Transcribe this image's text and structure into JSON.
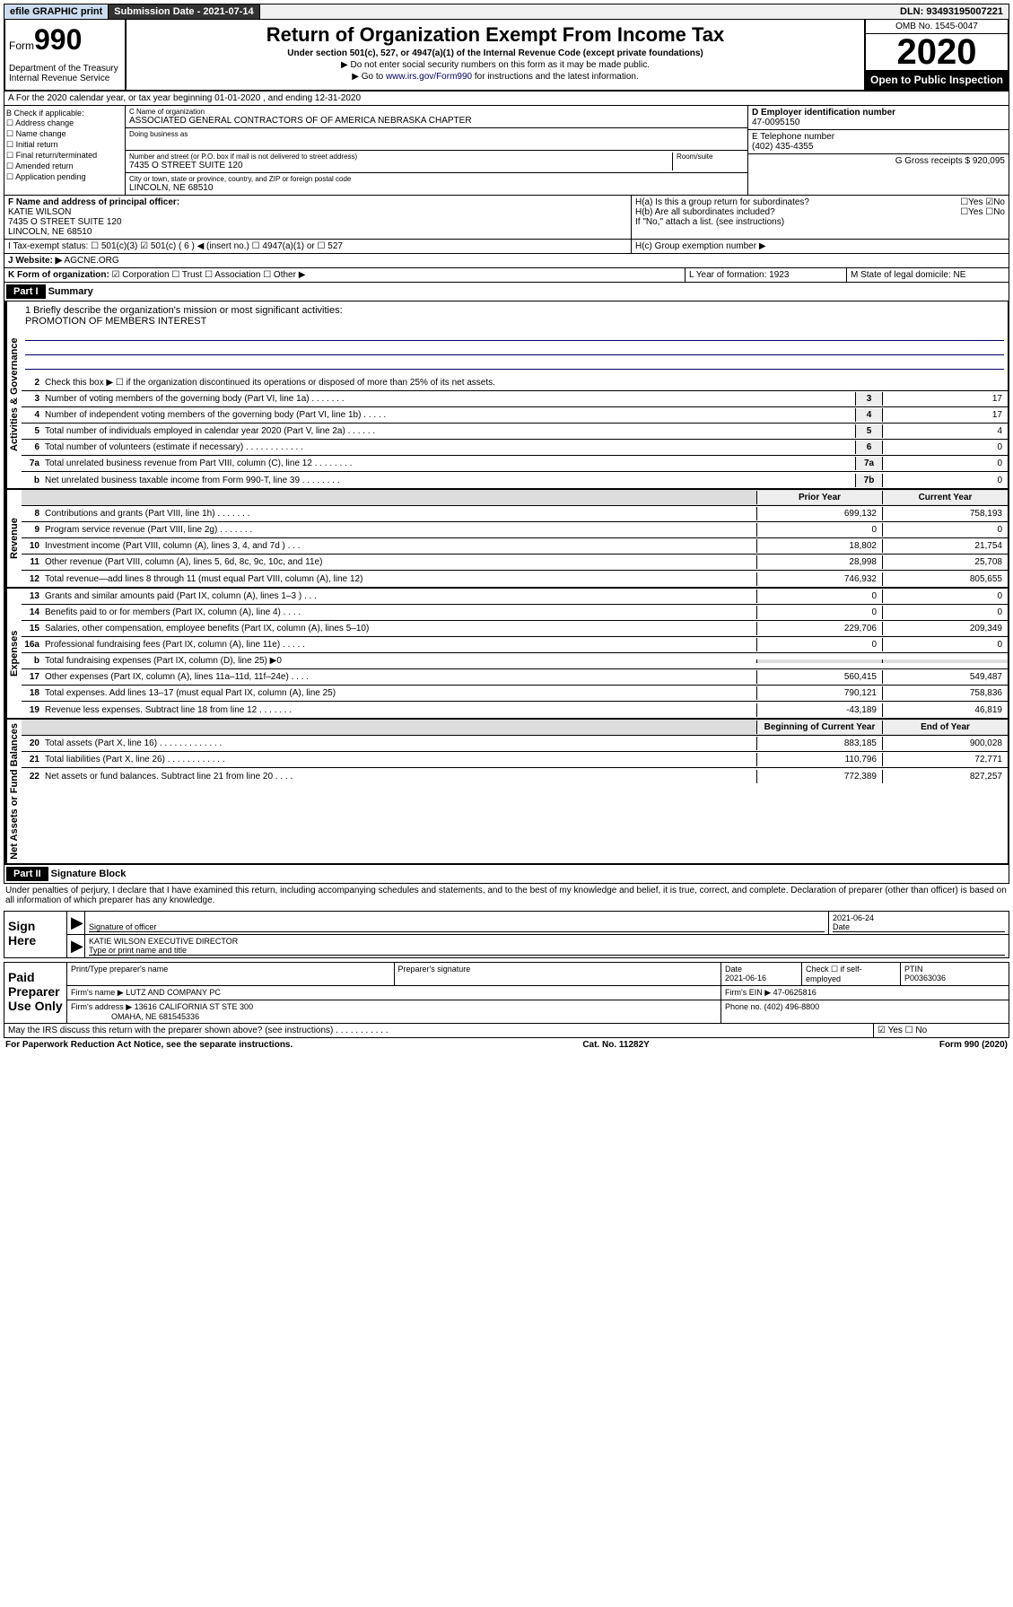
{
  "topbar": {
    "efile": "efile GRAPHIC print",
    "submission_label": "Submission Date - 2021-07-14",
    "dln": "DLN: 93493195007221"
  },
  "header": {
    "form_prefix": "Form",
    "form_number": "990",
    "dept": "Department of the Treasury Internal Revenue Service",
    "title": "Return of Organization Exempt From Income Tax",
    "subtitle": "Under section 501(c), 527, or 4947(a)(1) of the Internal Revenue Code (except private foundations)",
    "note1": "▶ Do not enter social security numbers on this form as it may be made public.",
    "note2_pre": "▶ Go to ",
    "note2_link": "www.irs.gov/Form990",
    "note2_post": " for instructions and the latest information.",
    "omb": "OMB No. 1545-0047",
    "year": "2020",
    "open_public": "Open to Public Inspection"
  },
  "lineA": "A For the 2020 calendar year, or tax year beginning 01-01-2020    , and ending 12-31-2020",
  "boxB": {
    "label": "B Check if applicable:",
    "opts": [
      "Address change",
      "Name change",
      "Initial return",
      "Final return/terminated",
      "Amended return",
      "Application pending"
    ]
  },
  "boxC": {
    "name_label": "C Name of organization",
    "name": "ASSOCIATED GENERAL CONTRACTORS OF OF AMERICA NEBRASKA CHAPTER",
    "dba_label": "Doing business as",
    "addr_label": "Number and street (or P.O. box if mail is not delivered to street address)",
    "room_label": "Room/suite",
    "addr": "7435 O STREET SUITE 120",
    "city_label": "City or town, state or province, country, and ZIP or foreign postal code",
    "city": "LINCOLN, NE  68510"
  },
  "boxD": {
    "label": "D Employer identification number",
    "val": "47-0095150"
  },
  "boxE": {
    "label": "E Telephone number",
    "val": "(402) 435-4355"
  },
  "boxG": {
    "label": "G Gross receipts $ 920,095"
  },
  "boxF": {
    "label": "F  Name and address of principal officer:",
    "name": "KATIE WILSON",
    "addr1": "7435 O STREET SUITE 120",
    "addr2": "LINCOLN, NE  68510"
  },
  "boxH": {
    "a": "H(a)  Is this a group return for subordinates?",
    "b": "H(b)  Are all subordinates included?",
    "note": "If \"No,\" attach a list. (see instructions)",
    "c": "H(c)  Group exemption number ▶"
  },
  "boxI": {
    "label": "I Tax-exempt status:",
    "val": "501(c) ( 6 ) ◀ (insert no.)"
  },
  "boxJ": {
    "label": "J Website: ▶",
    "val": "AGCNE.ORG"
  },
  "boxK": {
    "label": "K Form of organization:"
  },
  "boxL": {
    "label": "L Year of formation: 1923"
  },
  "boxM": {
    "label": "M State of legal domicile: NE"
  },
  "part1": {
    "header": "Part I",
    "title": "Summary",
    "mission_label": "1  Briefly describe the organization's mission or most significant activities:",
    "mission": "PROMOTION OF MEMBERS INTEREST",
    "line2": "Check this box ▶ ☐  if the organization discontinued its operations or disposed of more than 25% of its net assets.",
    "gov_label": "Activities & Governance",
    "rev_label": "Revenue",
    "exp_label": "Expenses",
    "net_label": "Net Assets or Fund Balances",
    "rows_gov": [
      {
        "n": "3",
        "d": "Number of voting members of the governing body (Part VI, line 1a)  .   .   .   .   .   .   .",
        "b": "3",
        "v": "17"
      },
      {
        "n": "4",
        "d": "Number of independent voting members of the governing body (Part VI, line 1b)  .   .   .   .   .",
        "b": "4",
        "v": "17"
      },
      {
        "n": "5",
        "d": "Total number of individuals employed in calendar year 2020 (Part V, line 2a)  .   .   .   .   .   .",
        "b": "5",
        "v": "4"
      },
      {
        "n": "6",
        "d": "Total number of volunteers (estimate if necessary)  .   .   .   .   .   .   .   .   .   .   .   .",
        "b": "6",
        "v": "0"
      },
      {
        "n": "7a",
        "d": "Total unrelated business revenue from Part VIII, column (C), line 12  .   .   .   .   .   .   .   .",
        "b": "7a",
        "v": "0"
      },
      {
        "n": "b",
        "d": "Net unrelated business taxable income from Form 990-T, line 39  .   .   .   .   .   .   .   .",
        "b": "7b",
        "v": "0"
      }
    ],
    "col_prior": "Prior Year",
    "col_current": "Current Year",
    "rows_rev": [
      {
        "n": "8",
        "d": "Contributions and grants (Part VIII, line 1h)  .   .   .   .   .   .   .",
        "p": "699,132",
        "c": "758,193"
      },
      {
        "n": "9",
        "d": "Program service revenue (Part VIII, line 2g)  .   .   .   .   .   .   .",
        "p": "0",
        "c": "0"
      },
      {
        "n": "10",
        "d": "Investment income (Part VIII, column (A), lines 3, 4, and 7d )  .   .   .",
        "p": "18,802",
        "c": "21,754"
      },
      {
        "n": "11",
        "d": "Other revenue (Part VIII, column (A), lines 5, 6d, 8c, 9c, 10c, and 11e)",
        "p": "28,998",
        "c": "25,708"
      },
      {
        "n": "12",
        "d": "Total revenue—add lines 8 through 11 (must equal Part VIII, column (A), line 12)",
        "p": "746,932",
        "c": "805,655"
      }
    ],
    "rows_exp": [
      {
        "n": "13",
        "d": "Grants and similar amounts paid (Part IX, column (A), lines 1–3 )  .   .   .",
        "p": "0",
        "c": "0"
      },
      {
        "n": "14",
        "d": "Benefits paid to or for members (Part IX, column (A), line 4)  .   .   .   .",
        "p": "0",
        "c": "0"
      },
      {
        "n": "15",
        "d": "Salaries, other compensation, employee benefits (Part IX, column (A), lines 5–10)",
        "p": "229,706",
        "c": "209,349"
      },
      {
        "n": "16a",
        "d": "Professional fundraising fees (Part IX, column (A), line 11e)  .   .   .   .   .",
        "p": "0",
        "c": "0"
      },
      {
        "n": "b",
        "d": "Total fundraising expenses (Part IX, column (D), line 25) ▶0",
        "p": "",
        "c": ""
      },
      {
        "n": "17",
        "d": "Other expenses (Part IX, column (A), lines 11a–11d, 11f–24e)  .   .   .   .",
        "p": "560,415",
        "c": "549,487"
      },
      {
        "n": "18",
        "d": "Total expenses. Add lines 13–17 (must equal Part IX, column (A), line 25)",
        "p": "790,121",
        "c": "758,836"
      },
      {
        "n": "19",
        "d": "Revenue less expenses. Subtract line 18 from line 12  .   .   .   .   .   .   .",
        "p": "-43,189",
        "c": "46,819"
      }
    ],
    "col_begin": "Beginning of Current Year",
    "col_end": "End of Year",
    "rows_net": [
      {
        "n": "20",
        "d": "Total assets (Part X, line 16)  .   .   .   .   .   .   .   .   .   .   .   .   .",
        "p": "883,185",
        "c": "900,028"
      },
      {
        "n": "21",
        "d": "Total liabilities (Part X, line 26)  .   .   .   .   .   .   .   .   .   .   .   .",
        "p": "110,796",
        "c": "72,771"
      },
      {
        "n": "22",
        "d": "Net assets or fund balances. Subtract line 21 from line 20  .   .   .   .",
        "p": "772,389",
        "c": "827,257"
      }
    ]
  },
  "part2": {
    "header": "Part II",
    "title": "Signature Block",
    "perjury": "Under penalties of perjury, I declare that I have examined this return, including accompanying schedules and statements, and to the best of my knowledge and belief, it is true, correct, and complete. Declaration of preparer (other than officer) is based on all information of which preparer has any knowledge.",
    "sign_here": "Sign Here",
    "sig_officer": "Signature of officer",
    "sig_date": "2021-06-24",
    "date_label": "Date",
    "sig_name": "KATIE WILSON EXECUTIVE DIRECTOR",
    "sig_name_label": "Type or print name and title",
    "paid_label": "Paid Preparer Use Only",
    "prep_name_label": "Print/Type preparer's name",
    "prep_sig_label": "Preparer's signature",
    "prep_date_label": "Date",
    "prep_date": "2021-06-16",
    "self_emp": "Check ☐ if self-employed",
    "ptin_label": "PTIN",
    "ptin": "P00363036",
    "firm_name_label": "Firm's name   ▶",
    "firm_name": "LUTZ AND COMPANY PC",
    "firm_ein_label": "Firm's EIN ▶",
    "firm_ein": "47-0625816",
    "firm_addr_label": "Firm's address ▶",
    "firm_addr": "13616 CALIFORNIA ST STE 300",
    "firm_addr2": "OMAHA, NE  681545336",
    "phone_label": "Phone no.",
    "phone": "(402) 496-8800",
    "discuss": "May the IRS discuss this return with the preparer shown above? (see instructions)   .   .   .   .   .   .   .   .   .   .   ."
  },
  "footer": {
    "paperwork": "For Paperwork Reduction Act Notice, see the separate instructions.",
    "cat": "Cat. No. 11282Y",
    "form": "Form 990 (2020)"
  }
}
